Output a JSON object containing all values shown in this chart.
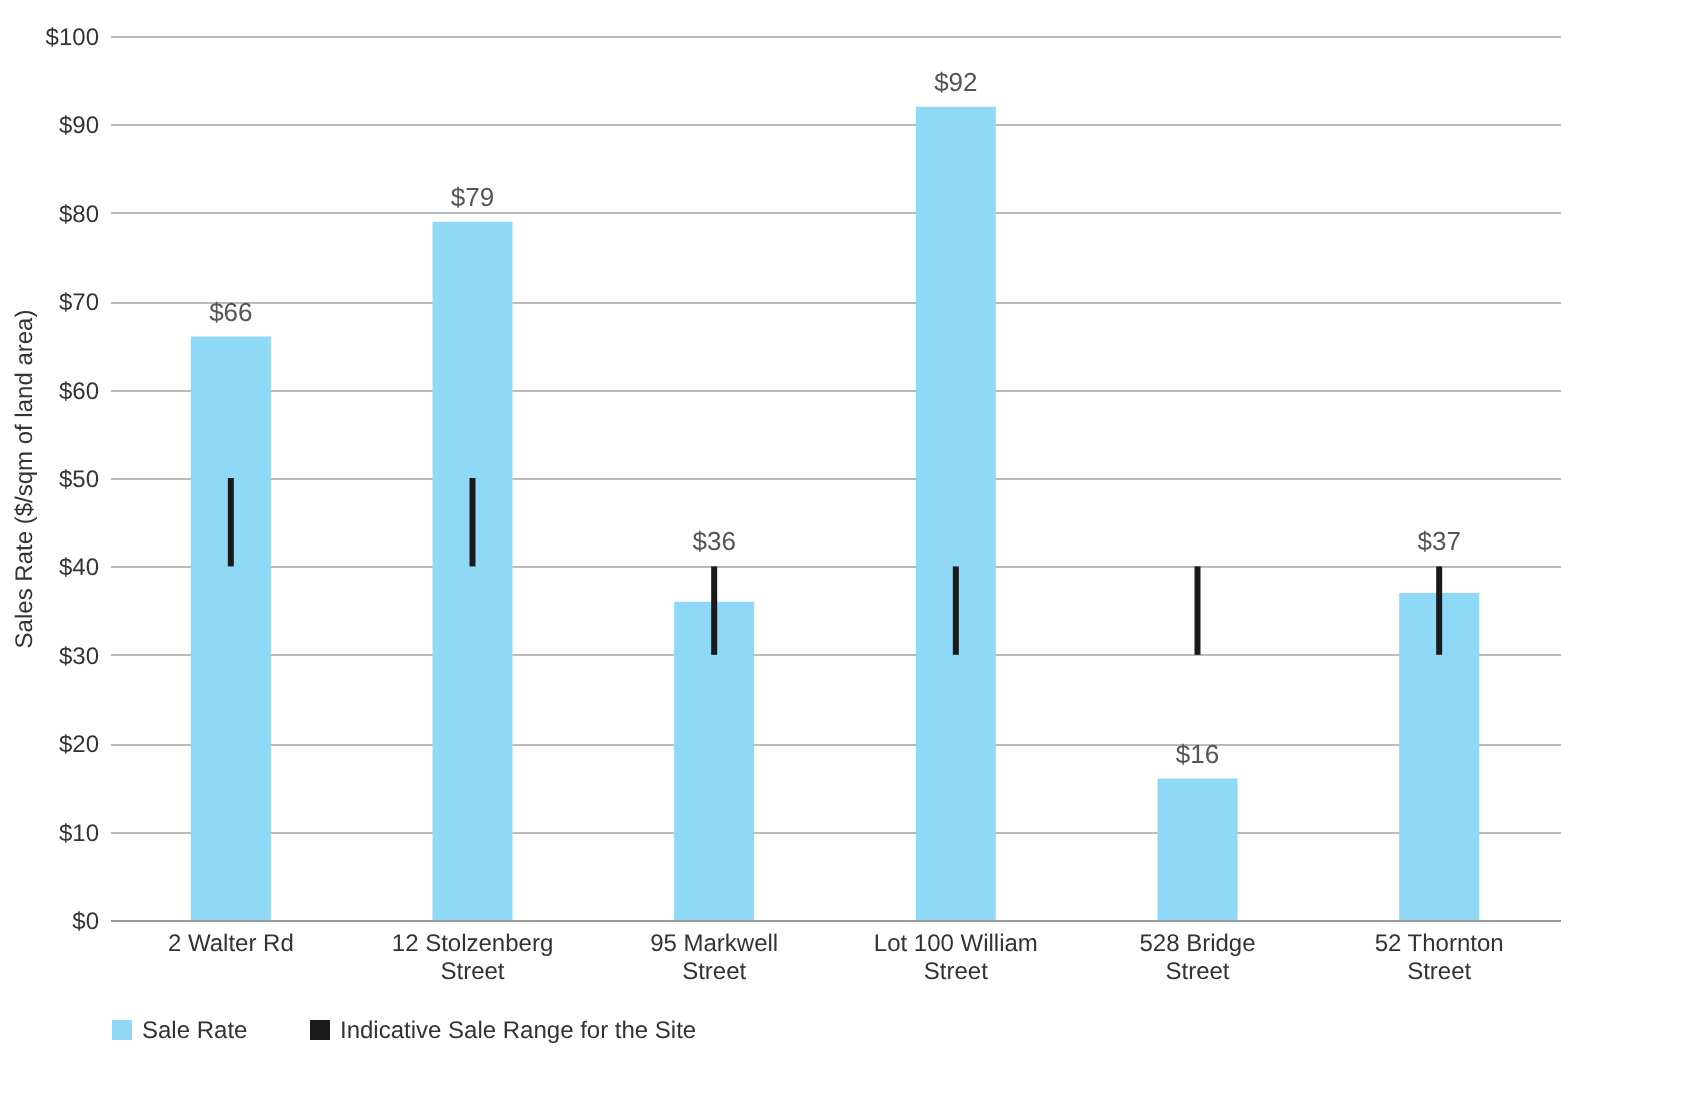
{
  "chart_data": {
    "type": "bar",
    "ylabel": "Sales Rate ($/sqm of land area)",
    "categories": [
      "2 Walter Rd",
      "12 Stolzenberg Street",
      "95 Markwell Street",
      "Lot 100 William Street",
      "528 Bridge Street",
      "52 Thornton Street"
    ],
    "series": [
      {
        "name": "Sale Rate",
        "color": "#8fd8f6",
        "values": [
          66,
          79,
          36,
          92,
          16,
          37
        ],
        "value_labels": [
          "$66",
          "$79",
          "$36",
          "$92",
          "$16",
          "$37"
        ]
      },
      {
        "name": "Indicative Sale Range for the Site",
        "color": "#1a1a1a",
        "base": [
          40,
          40,
          30,
          30,
          30,
          30
        ],
        "values": [
          10,
          10,
          10,
          10,
          10,
          10
        ]
      }
    ],
    "ylim": [
      0,
      100
    ],
    "yticks": [
      {
        "value": 0,
        "label": "$0"
      },
      {
        "value": 10,
        "label": "$10"
      },
      {
        "value": 20,
        "label": "$20"
      },
      {
        "value": 30,
        "label": "$30"
      },
      {
        "value": 40,
        "label": "$40"
      },
      {
        "value": 50,
        "label": "$50"
      },
      {
        "value": 60,
        "label": "$60"
      },
      {
        "value": 70,
        "label": "$70"
      },
      {
        "value": 80,
        "label": "$80"
      },
      {
        "value": 90,
        "label": "$90"
      },
      {
        "value": 100,
        "label": "$100"
      }
    ],
    "grid": "y",
    "legend": "bottom"
  }
}
